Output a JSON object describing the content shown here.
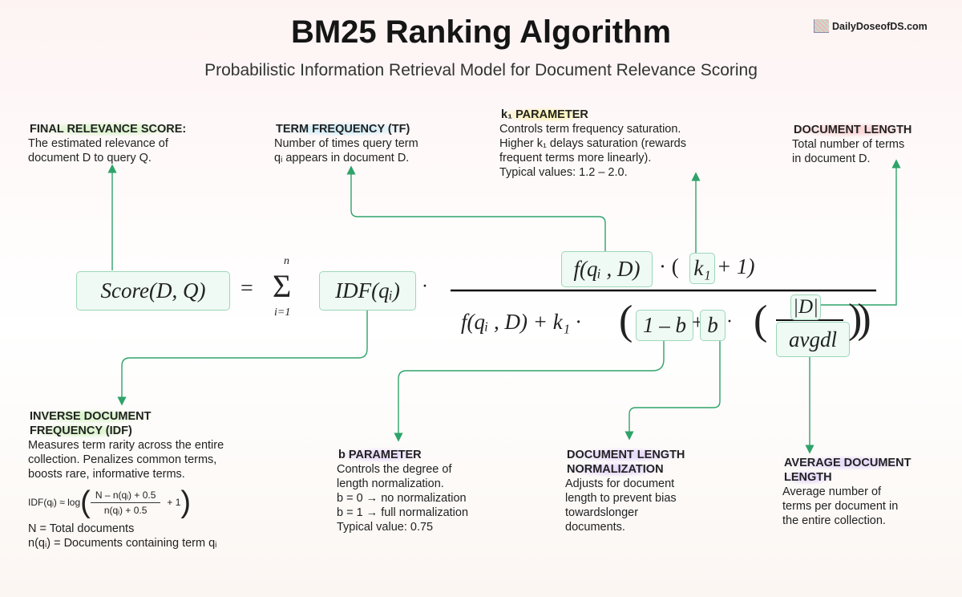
{
  "title": "BM25 Ranking Algorithm",
  "subtitle": "Probabilistic Information Retrieval Model for Document Relevance Scoring",
  "brand": "DailyDoseofDS.com",
  "colors": {
    "connector": "#2ea36a",
    "box_border": "#9fd6b9",
    "box_fill": "#eefaf3"
  },
  "notes": {
    "final": {
      "heading": "FINAL RELEVANCE SCORE:",
      "lines": [
        "The estimated relevance of",
        "document D to query Q."
      ]
    },
    "tf": {
      "heading": "TERM FREQUENCY (TF)",
      "lines": [
        "Number of times query term",
        "qᵢ appears in document D."
      ]
    },
    "k1": {
      "heading": "k₁ PARAMETER",
      "lines": [
        "Controls term frequency saturation.",
        "Higher k₁ delays saturation (rewards",
        "frequent terms more linearly).",
        "Typical values: 1.2 – 2.0."
      ]
    },
    "doclen": {
      "heading": "DOCUMENT LENGTH",
      "lines": [
        "Total number of terms",
        "in document D."
      ]
    },
    "idf": {
      "heading1": "INVERSE DOCUMENT",
      "heading2": "FREQUENCY (IDF)",
      "lines": [
        "Measures term rarity across the entire",
        "collection. Penalizes common terms,",
        "boosts rare, informative terms."
      ],
      "formula_lhs": "IDF(qᵢ) ≈ log",
      "formula_num": "N – n(qᵢ) + 0.5",
      "formula_den": "n(qᵢ) + 0.5",
      "formula_plus": "+ 1",
      "defs": [
        "N = Total documents",
        "n(qᵢ) = Documents containing term qᵢ"
      ]
    },
    "b": {
      "heading": "b PARAMETER",
      "lines": [
        "Controls the degree of",
        "length normalization.",
        "b = 0 → no normalization",
        "b = 1 → full normalization",
        "Typical value: 0.75"
      ]
    },
    "norm": {
      "heading1": "DOCUMENT LENGTH",
      "heading2": "NORMALIZATION",
      "lines": [
        "Adjusts for document",
        "length to prevent bias",
        "towardslonger",
        "documents."
      ]
    },
    "avg": {
      "heading1": "AVERAGE DOCUMENT",
      "heading2": "LENGTH",
      "lines": [
        "Average number of",
        "terms per document in",
        "the entire collection."
      ]
    }
  },
  "formula": {
    "score": "Score(D, Q)",
    "equals": "=",
    "sigma": "Σ",
    "upper": "n",
    "lower": "i=1",
    "idf": "IDF(qᵢ)",
    "dot": "·",
    "num_f": "f(qᵢ , D)",
    "num_mid": "· (",
    "num_k1": "k₁",
    "num_end": "+ 1)",
    "den_left": "f(qᵢ , D) + k₁ ·",
    "one_minus_b": "1 – b",
    "plus": "+",
    "b": "b",
    "D": "|D|",
    "avgdl": "avgdl"
  }
}
